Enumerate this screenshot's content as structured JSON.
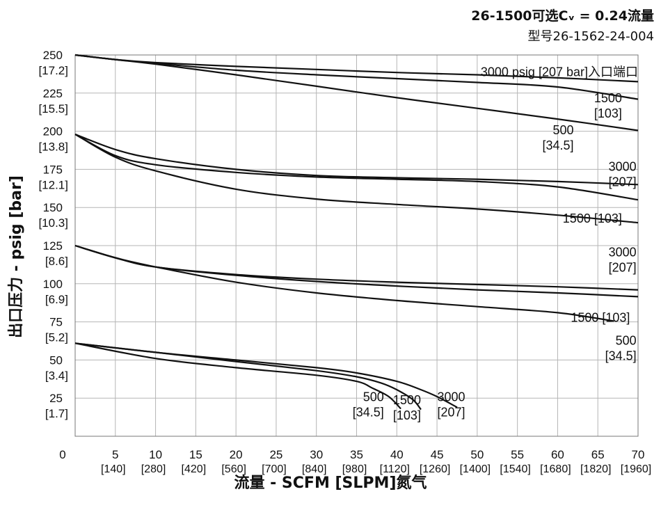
{
  "header": {
    "title": "26-1500可选Cᵥ = 0.24流量",
    "subtitle": "型号26-1562-24-004"
  },
  "chart_data": {
    "type": "line",
    "xlabel": "流量 - SCFM [SLPM]氮气",
    "ylabel": "出口压力 - psig [bar]",
    "xlim": [
      0,
      70
    ],
    "ylim": [
      0,
      250
    ],
    "grid": true,
    "x_ticks": [
      {
        "value": 0,
        "label": "0",
        "sub": ""
      },
      {
        "value": 5,
        "label": "5",
        "sub": "[140]"
      },
      {
        "value": 10,
        "label": "10",
        "sub": "[280]"
      },
      {
        "value": 15,
        "label": "15",
        "sub": "[420]"
      },
      {
        "value": 20,
        "label": "20",
        "sub": "[560]"
      },
      {
        "value": 25,
        "label": "25",
        "sub": "[700]"
      },
      {
        "value": 30,
        "label": "30",
        "sub": "[840]"
      },
      {
        "value": 35,
        "label": "35",
        "sub": "[980]"
      },
      {
        "value": 40,
        "label": "40",
        "sub": "[1120]"
      },
      {
        "value": 45,
        "label": "45",
        "sub": "[1260]"
      },
      {
        "value": 50,
        "label": "50",
        "sub": "[1400]"
      },
      {
        "value": 55,
        "label": "55",
        "sub": "[1540]"
      },
      {
        "value": 60,
        "label": "60",
        "sub": "[1680]"
      },
      {
        "value": 65,
        "label": "65",
        "sub": "[1820]"
      },
      {
        "value": 70,
        "label": "70",
        "sub": "[1960]"
      }
    ],
    "y_ticks": [
      {
        "value": 25,
        "label": "25",
        "sub": "[1.7]"
      },
      {
        "value": 50,
        "label": "50",
        "sub": "[3.4]"
      },
      {
        "value": 75,
        "label": "75",
        "sub": "[5.2]"
      },
      {
        "value": 100,
        "label": "100",
        "sub": "[6.9]"
      },
      {
        "value": 125,
        "label": "125",
        "sub": "[8.6]"
      },
      {
        "value": 150,
        "label": "150",
        "sub": "[10.3]"
      },
      {
        "value": 175,
        "label": "175",
        "sub": "[12.1]"
      },
      {
        "value": 200,
        "label": "200",
        "sub": "[13.8]"
      },
      {
        "value": 225,
        "label": "225",
        "sub": "[15.5]"
      },
      {
        "value": 250,
        "label": "250",
        "sub": "[17.2]"
      }
    ],
    "series": [
      {
        "set": "250",
        "inlet": "3000",
        "x": [
          0,
          5,
          10,
          20,
          30,
          40,
          50,
          60,
          70
        ],
        "y": [
          250,
          247,
          245,
          242.5,
          240.5,
          238.5,
          237,
          235,
          232.5
        ]
      },
      {
        "set": "250",
        "inlet": "1500",
        "x": [
          0,
          5,
          10,
          20,
          30,
          40,
          50,
          60,
          70
        ],
        "y": [
          250,
          247,
          244.5,
          240,
          237,
          234.5,
          232,
          229,
          221
        ]
      },
      {
        "set": "250",
        "inlet": "500",
        "x": [
          0,
          5,
          10,
          20,
          30,
          40,
          50,
          60,
          70
        ],
        "y": [
          250,
          247,
          244,
          237,
          229.5,
          222,
          215,
          208,
          200.5
        ]
      },
      {
        "set": "200",
        "inlet": "3000",
        "x": [
          0,
          5,
          10,
          20,
          30,
          40,
          50,
          60,
          70
        ],
        "y": [
          198,
          188,
          182,
          175,
          171,
          169.5,
          168.5,
          167,
          165
        ]
      },
      {
        "set": "200",
        "inlet": "1500",
        "x": [
          0,
          5,
          10,
          20,
          30,
          40,
          50,
          60,
          70
        ],
        "y": [
          198,
          184,
          178,
          173,
          170,
          168.5,
          167,
          163.5,
          155
        ]
      },
      {
        "set": "200",
        "inlet": "500",
        "x": [
          0,
          5,
          10,
          20,
          30,
          40,
          50,
          60,
          70
        ],
        "y": [
          198,
          183,
          174,
          162,
          155.5,
          152,
          149,
          145,
          140
        ]
      },
      {
        "set": "125",
        "inlet": "3000",
        "x": [
          0,
          5,
          10,
          20,
          30,
          40,
          50,
          60,
          70
        ],
        "y": [
          125,
          117,
          111,
          106,
          103,
          101,
          99.5,
          98,
          96
        ]
      },
      {
        "set": "125",
        "inlet": "1500",
        "x": [
          0,
          5,
          10,
          20,
          30,
          40,
          50,
          60,
          70
        ],
        "y": [
          125,
          117,
          111,
          105.5,
          101.5,
          98.5,
          96,
          94,
          91.5
        ]
      },
      {
        "set": "125",
        "inlet": "500",
        "x": [
          0,
          5,
          10,
          20,
          30,
          40,
          50,
          60,
          67
        ],
        "y": [
          125,
          117,
          111,
          101,
          94,
          89,
          85,
          81,
          75.5
        ]
      },
      {
        "set": "62",
        "inlet": "3000",
        "x": [
          0,
          10,
          20,
          30,
          35,
          40,
          43,
          45,
          47.5
        ],
        "y": [
          61,
          55,
          50,
          45,
          41.5,
          36,
          30.5,
          26,
          19
        ]
      },
      {
        "set": "62",
        "inlet": "1500",
        "x": [
          0,
          10,
          20,
          30,
          35,
          38,
          40,
          42,
          43
        ],
        "y": [
          61,
          55,
          49,
          43,
          39,
          35,
          30.5,
          24,
          17.5
        ]
      },
      {
        "set": "62",
        "inlet": "500",
        "x": [
          0,
          10,
          20,
          30,
          35,
          37,
          39,
          40.5
        ],
        "y": [
          61,
          51,
          45,
          40,
          36,
          31.5,
          26,
          18
        ]
      }
    ],
    "annotations": [
      {
        "lines": [
          "3000 psig [207 bar]入口端口"
        ],
        "x": 70,
        "y": 236,
        "anchor": "end"
      },
      {
        "lines": [
          "1500",
          "[103]"
        ],
        "x": 68,
        "y": 219,
        "anchor": "end"
      },
      {
        "lines": [
          "500",
          "[34.5]"
        ],
        "x": 62,
        "y": 198,
        "anchor": "end"
      },
      {
        "lines": [
          "3000",
          "[207]"
        ],
        "x": 69.8,
        "y": 174,
        "anchor": "end"
      },
      {
        "lines": [
          "1500 [103]"
        ],
        "x": 68,
        "y": 140,
        "anchor": "end"
      },
      {
        "lines": [
          "3000",
          "[207]"
        ],
        "x": 69.8,
        "y": 118,
        "anchor": "end"
      },
      {
        "lines": [
          "1500 [103]"
        ],
        "x": 69,
        "y": 75,
        "anchor": "end"
      },
      {
        "lines": [
          "500",
          "[34.5]"
        ],
        "x": 69.8,
        "y": 60,
        "anchor": "end"
      },
      {
        "lines": [
          "500",
          "[34.5]"
        ],
        "x": 38.4,
        "y": 23,
        "anchor": "end"
      },
      {
        "lines": [
          "1500",
          "[103]"
        ],
        "x": 43,
        "y": 21,
        "anchor": "end"
      },
      {
        "lines": [
          "3000",
          "[207]"
        ],
        "x": 48.5,
        "y": 23,
        "anchor": "end"
      }
    ]
  }
}
